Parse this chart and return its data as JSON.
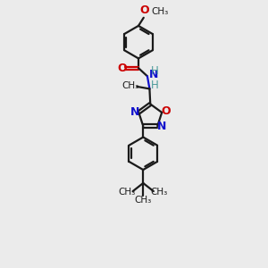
{
  "bg_color": "#ebebeb",
  "bond_color": "#1a1a1a",
  "N_color": "#1010cc",
  "O_color": "#cc0000",
  "H_color": "#4a9a9a",
  "figsize": [
    3.0,
    3.0
  ],
  "dpi": 100,
  "xlim": [
    0,
    10
  ],
  "ylim": [
    0,
    18
  ]
}
